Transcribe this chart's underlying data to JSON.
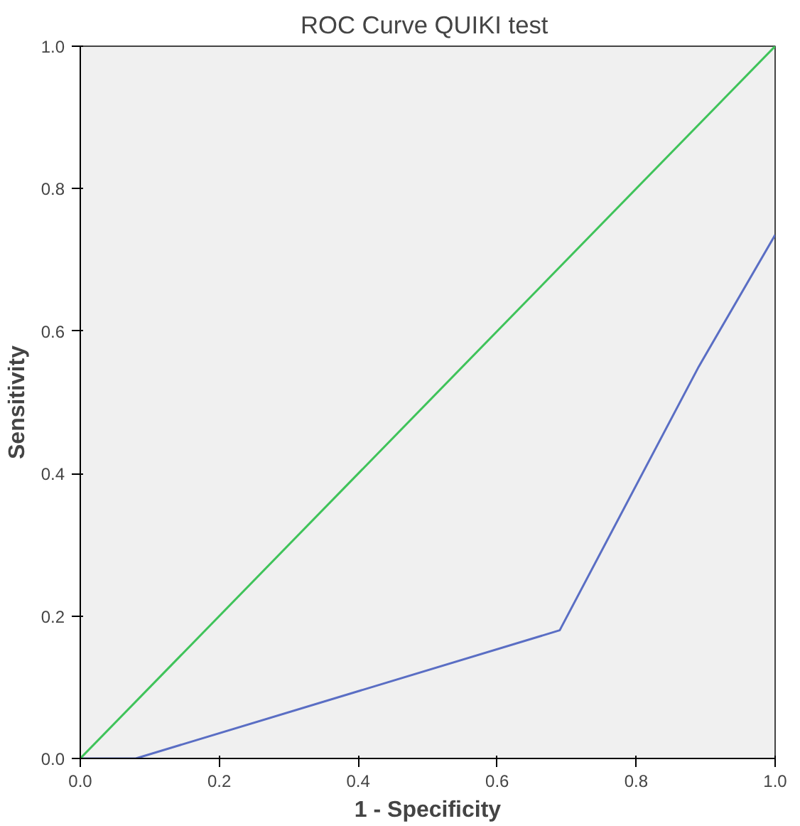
{
  "chart_data": {
    "type": "line",
    "title": "ROC Curve  QUIKI test",
    "xlabel": "1 - Specificity",
    "ylabel": "Sensitivity",
    "series": [
      {
        "color": "#5a6ec4",
        "x": [
          0,
          0.08,
          0.69,
          0.89,
          1.0
        ],
        "values": [
          0,
          0,
          0.18,
          0.55,
          0.735
        ]
      },
      {
        "color": "#3fc35a",
        "x": [
          0,
          1.0
        ],
        "values": [
          0,
          1.0
        ]
      }
    ],
    "xlim": [
      0,
      1
    ],
    "ylim": [
      0,
      1
    ],
    "xticks": [
      {
        "value": 0,
        "label": "0.0"
      },
      {
        "value": 0.2,
        "label": "0.2"
      },
      {
        "value": 0.4,
        "label": "0.4"
      },
      {
        "value": 0.6,
        "label": "0.6"
      },
      {
        "value": 0.8,
        "label": "0.8"
      },
      {
        "value": 1,
        "label": "1.0"
      }
    ],
    "yticks": [
      {
        "value": 0,
        "label": "0.0"
      },
      {
        "value": 0.2,
        "label": "0.2"
      },
      {
        "value": 0.4,
        "label": "0.4"
      },
      {
        "value": 0.6,
        "label": "0.6"
      },
      {
        "value": 0.8,
        "label": "0.8"
      },
      {
        "value": 1,
        "label": "1.0"
      }
    ],
    "grid": false,
    "marker": "none",
    "line_style": "solid"
  }
}
